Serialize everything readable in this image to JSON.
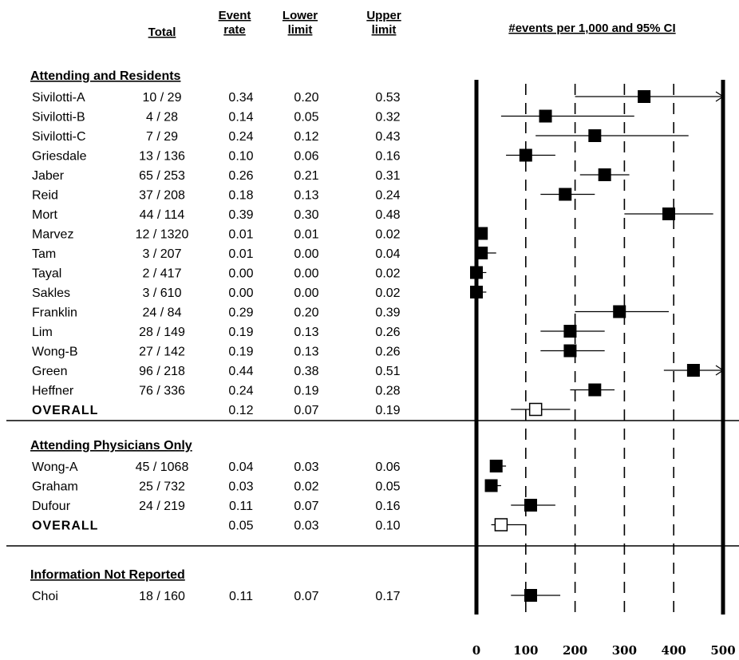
{
  "chart_data": {
    "type": "forest",
    "title": "#events per 1,000  and 95% CI",
    "columns": {
      "total": "Total",
      "event_rate": [
        "Event",
        "rate"
      ],
      "lower": [
        "Lower",
        "limit"
      ],
      "upper": [
        "Upper",
        "limit"
      ]
    },
    "xlim": [
      0,
      500
    ],
    "x_ticks": [
      "0",
      "100",
      "200",
      "300",
      "400",
      "500"
    ],
    "x_tick_values": [
      0,
      100,
      200,
      300,
      400,
      500
    ],
    "reference_lines": [
      100,
      200,
      300,
      400
    ],
    "groups": [
      {
        "name": "Attending and Residents",
        "rows": [
          {
            "study": "Sivilotti-A",
            "total": "10 / 29",
            "event_rate": "0.34",
            "lower": "0.20",
            "upper": "0.53",
            "est": 340,
            "lo": 200,
            "hi": 530
          },
          {
            "study": "Sivilotti-B",
            "total": "4 / 28",
            "event_rate": "0.14",
            "lower": "0.05",
            "upper": "0.32",
            "est": 140,
            "lo": 50,
            "hi": 320
          },
          {
            "study": "Sivilotti-C",
            "total": "7 / 29",
            "event_rate": "0.24",
            "lower": "0.12",
            "upper": "0.43",
            "est": 240,
            "lo": 120,
            "hi": 430
          },
          {
            "study": "Griesdale",
            "total": "13 / 136",
            "event_rate": "0.10",
            "lower": "0.06",
            "upper": "0.16",
            "est": 100,
            "lo": 60,
            "hi": 160
          },
          {
            "study": "Jaber",
            "total": "65 / 253",
            "event_rate": "0.26",
            "lower": "0.21",
            "upper": "0.31",
            "est": 260,
            "lo": 210,
            "hi": 310
          },
          {
            "study": "Reid",
            "total": "37 / 208",
            "event_rate": "0.18",
            "lower": "0.13",
            "upper": "0.24",
            "est": 180,
            "lo": 130,
            "hi": 240
          },
          {
            "study": "Mort",
            "total": "44 / 114",
            "event_rate": "0.39",
            "lower": "0.30",
            "upper": "0.48",
            "est": 390,
            "lo": 300,
            "hi": 480
          },
          {
            "study": "Marvez",
            "total": "12 / 1320",
            "event_rate": "0.01",
            "lower": "0.01",
            "upper": "0.02",
            "est": 10,
            "lo": 10,
            "hi": 20
          },
          {
            "study": "Tam",
            "total": "3 / 207",
            "event_rate": "0.01",
            "lower": "0.00",
            "upper": "0.04",
            "est": 10,
            "lo": 0,
            "hi": 40
          },
          {
            "study": "Tayal",
            "total": "2 / 417",
            "event_rate": "0.00",
            "lower": "0.00",
            "upper": "0.02",
            "est": 0,
            "lo": 0,
            "hi": 20
          },
          {
            "study": "Sakles",
            "total": "3 / 610",
            "event_rate": "0.00",
            "lower": "0.00",
            "upper": "0.02",
            "est": 0,
            "lo": 0,
            "hi": 20
          },
          {
            "study": "Franklin",
            "total": "24 / 84",
            "event_rate": "0.29",
            "lower": "0.20",
            "upper": "0.39",
            "est": 290,
            "lo": 200,
            "hi": 390
          },
          {
            "study": "Lim",
            "total": "28 / 149",
            "event_rate": "0.19",
            "lower": "0.13",
            "upper": "0.26",
            "est": 190,
            "lo": 130,
            "hi": 260
          },
          {
            "study": "Wong-B",
            "total": "27 / 142",
            "event_rate": "0.19",
            "lower": "0.13",
            "upper": "0.26",
            "est": 190,
            "lo": 130,
            "hi": 260
          },
          {
            "study": "Green",
            "total": "96 / 218",
            "event_rate": "0.44",
            "lower": "0.38",
            "upper": "0.51",
            "est": 440,
            "lo": 380,
            "hi": 510
          },
          {
            "study": "Heffner",
            "total": "76 / 336",
            "event_rate": "0.24",
            "lower": "0.19",
            "upper": "0.28",
            "est": 240,
            "lo": 190,
            "hi": 280
          }
        ],
        "overall": {
          "label": "OVERALL",
          "event_rate": "0.12",
          "lower": "0.07",
          "upper": "0.19",
          "est": 120,
          "lo": 70,
          "hi": 190
        }
      },
      {
        "name": "Attending Physicians Only",
        "rows": [
          {
            "study": "Wong-A",
            "total": "45 / 1068",
            "event_rate": "0.04",
            "lower": "0.03",
            "upper": "0.06",
            "est": 40,
            "lo": 30,
            "hi": 60
          },
          {
            "study": "Graham",
            "total": "25 / 732",
            "event_rate": "0.03",
            "lower": "0.02",
            "upper": "0.05",
            "est": 30,
            "lo": 20,
            "hi": 50
          },
          {
            "study": "Dufour",
            "total": "24 / 219",
            "event_rate": "0.11",
            "lower": "0.07",
            "upper": "0.16",
            "est": 110,
            "lo": 70,
            "hi": 160
          }
        ],
        "overall": {
          "label": "OVERALL",
          "event_rate": "0.05",
          "lower": "0.03",
          "upper": "0.10",
          "est": 50,
          "lo": 30,
          "hi": 100
        }
      },
      {
        "name": "Information Not Reported",
        "rows": [
          {
            "study": "Choi",
            "total": "18 / 160",
            "event_rate": "0.11",
            "lower": "0.07",
            "upper": "0.17",
            "est": 110,
            "lo": 70,
            "hi": 170
          }
        ],
        "overall": null
      }
    ]
  }
}
